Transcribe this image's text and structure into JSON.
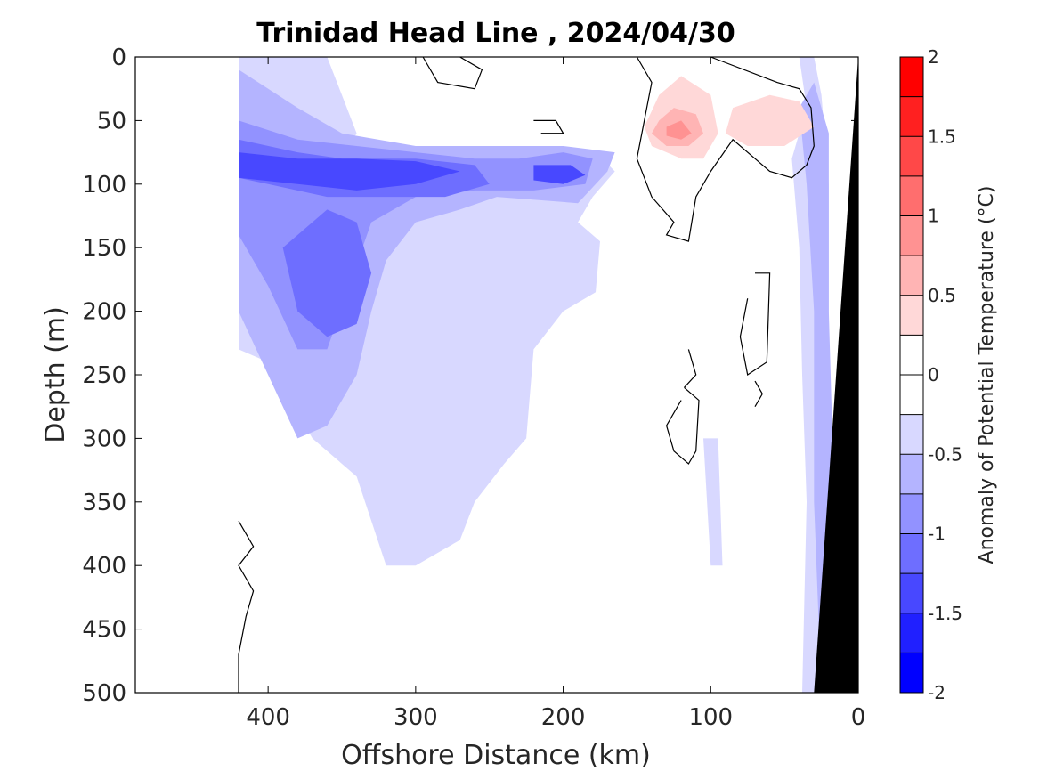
{
  "chart_data": {
    "type": "heatmap",
    "title": "Trinidad Head Line , 2024/04/30",
    "xlabel": "Offshore Distance (km)",
    "ylabel": "Depth (m)",
    "colorbar_label": "Anomaly of Potential Temperature (°C)",
    "x_axis": {
      "range": [
        490,
        0
      ],
      "reversed": true,
      "ticks": [
        400,
        300,
        200,
        100,
        0
      ],
      "tick_labels": [
        "400",
        "300",
        "200",
        "100",
        "0"
      ]
    },
    "y_axis": {
      "range": [
        0,
        500
      ],
      "reversed": true,
      "ticks": [
        0,
        50,
        100,
        150,
        200,
        250,
        300,
        350,
        400,
        450,
        500
      ],
      "tick_labels": [
        "0",
        "50",
        "100",
        "150",
        "200",
        "250",
        "300",
        "350",
        "400",
        "450",
        "500"
      ]
    },
    "colorbar": {
      "range": [
        -2,
        2
      ],
      "levels": [
        -2,
        -1.75,
        -1.5,
        -1.25,
        -1,
        -0.75,
        -0.5,
        -0.25,
        0,
        0.25,
        0.5,
        0.75,
        1,
        1.25,
        1.5,
        1.75,
        2
      ],
      "colors": [
        "#0000ff",
        "#2020ff",
        "#4848ff",
        "#6e6eff",
        "#9292ff",
        "#b4b4ff",
        "#d8d8ff",
        "#ffffff",
        "#ffffff",
        "#ffd8d8",
        "#ffb4b4",
        "#ff9292",
        "#ff6e6e",
        "#ff4848",
        "#ff2020",
        "#ff0000"
      ],
      "ticks": [
        -2,
        -1.5,
        -1,
        -0.5,
        0,
        0.5,
        1,
        1.5,
        2
      ],
      "tick_labels": [
        "-2",
        "-1.5",
        "-1",
        "-0.5",
        "0",
        "0.5",
        "1",
        "1.5",
        "2"
      ]
    },
    "data_extent_km": [
      0,
      420
    ],
    "seafloor": {
      "color": "#000000",
      "points": [
        [
          0,
          0
        ],
        [
          0,
          500
        ],
        [
          30,
          500
        ]
      ]
    },
    "zero_contour_color": "#000000",
    "regions": [
      {
        "level": -0.25,
        "points": [
          [
            420,
            0
          ],
          [
            0,
            0
          ],
          [
            0,
            500
          ],
          [
            420,
            500
          ]
        ]
      },
      {
        "level": 0,
        "points": [
          [
            220,
            0
          ],
          [
            135,
            0
          ],
          [
            110,
            25
          ],
          [
            145,
            50
          ],
          [
            150,
            90
          ],
          [
            175,
            115
          ],
          [
            160,
            160
          ],
          [
            178,
            230
          ],
          [
            172,
            290
          ],
          [
            170,
            340
          ],
          [
            180,
            390
          ],
          [
            190,
            430
          ],
          [
            195,
            470
          ],
          [
            190,
            500
          ],
          [
            53,
            500
          ],
          [
            55,
            420
          ],
          [
            48,
            350
          ],
          [
            45,
            250
          ],
          [
            50,
            150
          ],
          [
            55,
            100
          ],
          [
            45,
            70
          ],
          [
            30,
            20
          ],
          [
            40,
            0
          ],
          [
            135,
            0
          ]
        ]
      },
      {
        "level": 0,
        "points": [
          [
            290,
            0
          ],
          [
            250,
            0
          ],
          [
            240,
            40
          ],
          [
            265,
            50
          ],
          [
            300,
            50
          ],
          [
            305,
            30
          ]
        ]
      },
      {
        "level": 0,
        "points": [
          [
            350,
            500
          ],
          [
            330,
            440
          ],
          [
            300,
            440
          ],
          [
            290,
            500
          ]
        ]
      },
      {
        "level": -0.5,
        "points": [
          [
            420,
            0
          ],
          [
            360,
            0
          ],
          [
            350,
            30
          ],
          [
            340,
            60
          ],
          [
            350,
            80
          ],
          [
            330,
            95
          ],
          [
            310,
            100
          ],
          [
            240,
            95
          ],
          [
            200,
            85
          ],
          [
            175,
            78
          ],
          [
            165,
            90
          ],
          [
            180,
            110
          ],
          [
            190,
            130
          ],
          [
            175,
            145
          ],
          [
            178,
            185
          ],
          [
            200,
            200
          ],
          [
            220,
            230
          ],
          [
            225,
            300
          ],
          [
            240,
            320
          ],
          [
            260,
            350
          ],
          [
            270,
            380
          ],
          [
            300,
            400
          ],
          [
            320,
            400
          ],
          [
            340,
            330
          ],
          [
            370,
            300
          ],
          [
            400,
            240
          ],
          [
            420,
            230
          ]
        ]
      },
      {
        "level": -0.5,
        "points": [
          [
            75,
            0
          ],
          [
            40,
            0
          ],
          [
            35,
            40
          ],
          [
            45,
            80
          ],
          [
            40,
            150
          ],
          [
            38,
            250
          ],
          [
            35,
            350
          ],
          [
            38,
            500
          ],
          [
            25,
            500
          ],
          [
            20,
            300
          ],
          [
            20,
            100
          ],
          [
            25,
            30
          ],
          [
            30,
            0
          ]
        ]
      },
      {
        "level": -0.5,
        "points": [
          [
            105,
            300
          ],
          [
            95,
            300
          ],
          [
            92,
            400
          ],
          [
            100,
            400
          ]
        ]
      },
      {
        "level": -0.75,
        "points": [
          [
            420,
            10
          ],
          [
            380,
            40
          ],
          [
            350,
            60
          ],
          [
            300,
            70
          ],
          [
            250,
            70
          ],
          [
            200,
            70
          ],
          [
            165,
            75
          ],
          [
            170,
            90
          ],
          [
            190,
            115
          ],
          [
            245,
            110
          ],
          [
            270,
            120
          ],
          [
            300,
            130
          ],
          [
            320,
            160
          ],
          [
            330,
            200
          ],
          [
            340,
            250
          ],
          [
            360,
            290
          ],
          [
            380,
            300
          ],
          [
            400,
            250
          ],
          [
            420,
            200
          ]
        ]
      },
      {
        "level": -0.75,
        "points": [
          [
            40,
            40
          ],
          [
            30,
            20
          ],
          [
            20,
            60
          ],
          [
            20,
            200
          ],
          [
            15,
            400
          ],
          [
            25,
            500
          ],
          [
            30,
            350
          ],
          [
            30,
            200
          ],
          [
            35,
            100
          ]
        ]
      },
      {
        "level": -1,
        "points": [
          [
            420,
            50
          ],
          [
            380,
            65
          ],
          [
            340,
            70
          ],
          [
            300,
            75
          ],
          [
            260,
            80
          ],
          [
            230,
            80
          ],
          [
            200,
            75
          ],
          [
            180,
            80
          ],
          [
            185,
            100
          ],
          [
            220,
            105
          ],
          [
            260,
            105
          ],
          [
            300,
            110
          ],
          [
            330,
            130
          ],
          [
            345,
            180
          ],
          [
            360,
            230
          ],
          [
            380,
            230
          ],
          [
            400,
            180
          ],
          [
            420,
            140
          ]
        ]
      },
      {
        "level": -1.25,
        "points": [
          [
            420,
            65
          ],
          [
            380,
            75
          ],
          [
            350,
            80
          ],
          [
            300,
            80
          ],
          [
            260,
            85
          ],
          [
            250,
            100
          ],
          [
            280,
            110
          ],
          [
            320,
            110
          ],
          [
            360,
            110
          ],
          [
            400,
            100
          ],
          [
            420,
            95
          ]
        ]
      },
      {
        "level": -1.25,
        "points": [
          [
            360,
            120
          ],
          [
            340,
            130
          ],
          [
            330,
            170
          ],
          [
            340,
            210
          ],
          [
            360,
            220
          ],
          [
            380,
            200
          ],
          [
            390,
            150
          ]
        ]
      },
      {
        "level": -1.5,
        "points": [
          [
            420,
            75
          ],
          [
            380,
            80
          ],
          [
            340,
            80
          ],
          [
            300,
            82
          ],
          [
            270,
            90
          ],
          [
            300,
            100
          ],
          [
            340,
            105
          ],
          [
            380,
            100
          ],
          [
            420,
            95
          ]
        ]
      },
      {
        "level": -1.5,
        "points": [
          [
            220,
            85
          ],
          [
            195,
            85
          ],
          [
            185,
            93
          ],
          [
            200,
            100
          ],
          [
            220,
            97
          ]
        ]
      },
      {
        "level": 0.25,
        "points": [
          [
            145,
            55
          ],
          [
            135,
            30
          ],
          [
            120,
            15
          ],
          [
            100,
            30
          ],
          [
            95,
            60
          ],
          [
            105,
            80
          ],
          [
            120,
            80
          ],
          [
            140,
            70
          ]
        ]
      },
      {
        "level": 0.25,
        "points": [
          [
            85,
            40
          ],
          [
            60,
            30
          ],
          [
            40,
            35
          ],
          [
            30,
            55
          ],
          [
            50,
            70
          ],
          [
            75,
            70
          ],
          [
            90,
            60
          ]
        ]
      },
      {
        "level": 0.5,
        "points": [
          [
            135,
            50
          ],
          [
            125,
            40
          ],
          [
            110,
            45
          ],
          [
            105,
            60
          ],
          [
            115,
            70
          ],
          [
            130,
            70
          ],
          [
            140,
            60
          ]
        ]
      },
      {
        "level": 0.75,
        "points": [
          [
            130,
            55
          ],
          [
            120,
            50
          ],
          [
            113,
            60
          ],
          [
            120,
            65
          ],
          [
            130,
            62
          ]
        ]
      }
    ],
    "zero_contours": [
      [
        [
          295,
          0
        ],
        [
          285,
          20
        ],
        [
          260,
          25
        ],
        [
          255,
          10
        ],
        [
          270,
          0
        ]
      ],
      [
        [
          220,
          50
        ],
        [
          205,
          50
        ],
        [
          200,
          60
        ],
        [
          215,
          60
        ]
      ],
      [
        [
          150,
          0
        ],
        [
          140,
          20
        ],
        [
          145,
          50
        ],
        [
          150,
          80
        ],
        [
          140,
          110
        ],
        [
          125,
          130
        ],
        [
          130,
          140
        ],
        [
          115,
          145
        ],
        [
          110,
          110
        ],
        [
          100,
          90
        ],
        [
          85,
          65
        ],
        [
          70,
          80
        ],
        [
          60,
          90
        ],
        [
          45,
          95
        ],
        [
          35,
          85
        ],
        [
          30,
          70
        ],
        [
          32,
          40
        ],
        [
          40,
          25
        ],
        [
          55,
          20
        ],
        [
          100,
          0
        ]
      ],
      [
        [
          70,
          170
        ],
        [
          60,
          170
        ],
        [
          62,
          240
        ],
        [
          75,
          250
        ],
        [
          80,
          220
        ],
        [
          75,
          190
        ]
      ],
      [
        [
          115,
          230
        ],
        [
          110,
          250
        ],
        [
          118,
          260
        ]
      ],
      [
        [
          118,
          260
        ],
        [
          108,
          270
        ],
        [
          110,
          310
        ],
        [
          115,
          320
        ],
        [
          125,
          310
        ],
        [
          130,
          290
        ],
        [
          120,
          270
        ]
      ],
      [
        [
          420,
          365
        ],
        [
          410,
          385
        ],
        [
          420,
          400
        ],
        [
          410,
          420
        ],
        [
          415,
          440
        ],
        [
          420,
          470
        ],
        [
          420,
          500
        ]
      ],
      [
        [
          70,
          255
        ],
        [
          65,
          265
        ],
        [
          70,
          275
        ]
      ]
    ]
  }
}
